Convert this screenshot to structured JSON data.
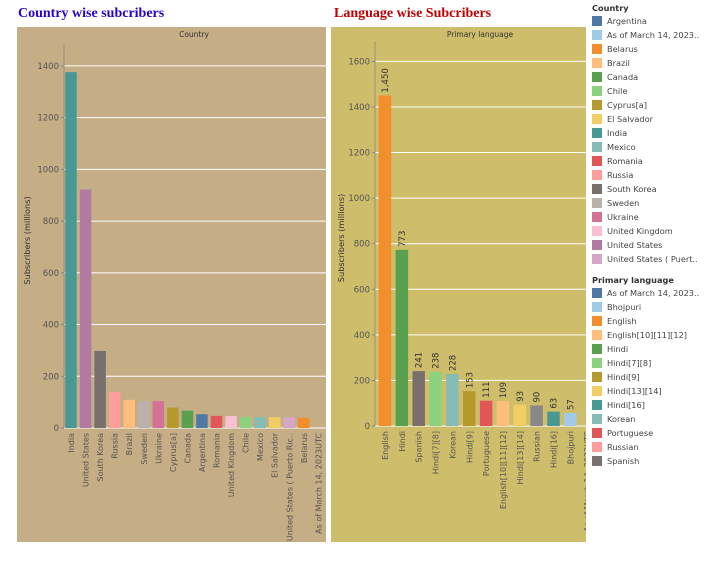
{
  "headings": {
    "left": {
      "text": "Country wise subcribers",
      "color": "#2a00cc"
    },
    "right": {
      "text": "Language wise Subcribers",
      "color": "#c00000"
    }
  },
  "colors": {
    "left_bg": "#c5ad85",
    "right_bg": "#cebd6a",
    "Argentina": "#4e79a7",
    "As of March 14, 2023UTC": "#a0cbe8",
    "Belarus": "#f28e2b",
    "Brazil": "#ffbe7d",
    "Canada": "#59a14f",
    "Chile": "#8cd17d",
    "Cyprus[a]": "#b6992d",
    "El Salvador": "#f1ce63",
    "India": "#499894",
    "Mexico": "#86bcb6",
    "Romania": "#e15759",
    "Russia": "#ff9d9a",
    "South Korea": "#79706e",
    "Sweden": "#bab0ac",
    "Ukraine": "#d37295",
    "United Kingdom": "#fabfd2",
    "United States": "#b07aa1",
    "United States ( Puerto Rico )": "#d4a6c8",
    "Bhojpuri": "#a0cbe8",
    "English": "#f28e2b",
    "English[10][11][12]": "#ffbe7d",
    "Hindi": "#59a14f",
    "Hindi[7][8]": "#8cd17d",
    "Hindi[9]": "#b6992d",
    "Hindi[13][14]": "#f1ce63",
    "Hindi[16]": "#499894",
    "Korean": "#86bcb6",
    "Portuguese": "#e15759",
    "Spanish": "#79706e"
  },
  "chart_data": [
    {
      "type": "bar",
      "title": "Country",
      "xlabel": "",
      "ylabel": "Subscribers (millions)",
      "ylim": [
        0,
        1450
      ],
      "yticks": [
        0,
        200,
        400,
        600,
        800,
        1000,
        1200,
        1400
      ],
      "grid": true,
      "categories": [
        "India",
        "United States",
        "South Korea",
        "Russia",
        "Brazil",
        "Sweden",
        "Ukraine",
        "Cyprus[a]",
        "Canada",
        "Argentina",
        "Romania",
        "United Kingdom",
        "Chile",
        "Mexico",
        "El Salvador",
        "United States ( Puerto Ric..",
        "Belarus",
        "As of March 14, 2023UTC"
      ],
      "values": [
        1376,
        922,
        298,
        140,
        109,
        104,
        104,
        79,
        67,
        53,
        47,
        46,
        43,
        42,
        42,
        42,
        40,
        0
      ]
    },
    {
      "type": "bar",
      "title": "Primary language",
      "xlabel": "",
      "ylabel": "Subscribers (millions)",
      "ylim": [
        0,
        1650
      ],
      "yticks": [
        0,
        200,
        400,
        600,
        800,
        1000,
        1200,
        1400,
        1600
      ],
      "grid": true,
      "categories": [
        "English",
        "Hindi",
        "Spanish",
        "Hindi[7][8]",
        "Korean",
        "Hindi[9]",
        "Portuguese",
        "English[10][11][12]",
        "Hindi[13][14]",
        "Russian",
        "Hindi[16]",
        "Bhojpuri",
        "As of March 14, 2023UTC"
      ],
      "values": [
        1450,
        773,
        241,
        238,
        228,
        153,
        111,
        109,
        93,
        90,
        63,
        57,
        0
      ],
      "data_labels": [
        "1,450",
        "773",
        "241",
        "238",
        "228",
        "153",
        "111",
        "109",
        "93",
        "90",
        "63",
        "57",
        ""
      ]
    }
  ],
  "legend": [
    {
      "title": "Country",
      "items": [
        {
          "label": "Argentina",
          "color": "#4e79a7"
        },
        {
          "label": "As of March 14, 2023..",
          "color": "#a0cbe8"
        },
        {
          "label": "Belarus",
          "color": "#f28e2b"
        },
        {
          "label": "Brazil",
          "color": "#ffbe7d"
        },
        {
          "label": "Canada",
          "color": "#59a14f"
        },
        {
          "label": "Chile",
          "color": "#8cd17d"
        },
        {
          "label": "Cyprus[a]",
          "color": "#b6992d"
        },
        {
          "label": "El Salvador",
          "color": "#f1ce63"
        },
        {
          "label": "India",
          "color": "#499894"
        },
        {
          "label": "Mexico",
          "color": "#86bcb6"
        },
        {
          "label": "Romania",
          "color": "#e15759"
        },
        {
          "label": "Russia",
          "color": "#ff9d9a"
        },
        {
          "label": "South Korea",
          "color": "#79706e"
        },
        {
          "label": "Sweden",
          "color": "#bab0ac"
        },
        {
          "label": "Ukraine",
          "color": "#d37295"
        },
        {
          "label": "United Kingdom",
          "color": "#fabfd2"
        },
        {
          "label": "United States",
          "color": "#b07aa1"
        },
        {
          "label": "United States ( Puert..",
          "color": "#d4a6c8"
        }
      ]
    },
    {
      "title": "Primary language",
      "items": [
        {
          "label": "As of March 14, 2023..",
          "color": "#4e79a7"
        },
        {
          "label": "Bhojpuri",
          "color": "#a0cbe8"
        },
        {
          "label": "English",
          "color": "#f28e2b"
        },
        {
          "label": "English[10][11][12]",
          "color": "#ffbe7d"
        },
        {
          "label": "Hindi",
          "color": "#59a14f"
        },
        {
          "label": "Hindi[7][8]",
          "color": "#8cd17d"
        },
        {
          "label": "Hindi[9]",
          "color": "#b6992d"
        },
        {
          "label": "Hindi[13][14]",
          "color": "#f1ce63"
        },
        {
          "label": "Hindi[16]",
          "color": "#499894"
        },
        {
          "label": "Korean",
          "color": "#86bcb6"
        },
        {
          "label": "Portuguese",
          "color": "#e15759"
        },
        {
          "label": "Russian",
          "color": "#ff9d9a"
        },
        {
          "label": "Spanish",
          "color": "#79706e"
        }
      ]
    }
  ]
}
